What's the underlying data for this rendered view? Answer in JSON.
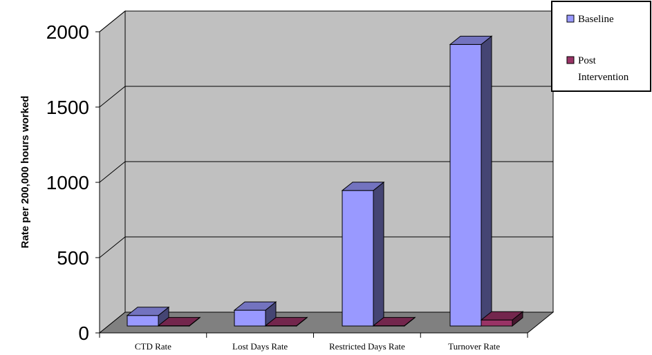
{
  "chart_data": {
    "type": "bar",
    "categories": [
      "CTD Rate",
      "Lost Days Rate",
      "Restricted Days Rate",
      "Turnover Rate"
    ],
    "series": [
      {
        "name": "Baseline",
        "values": [
          70,
          105,
          900,
          1870
        ],
        "color": "#9999ff"
      },
      {
        "name": "Post Intervention",
        "values": [
          2,
          2,
          2,
          40
        ],
        "color": "#993366"
      }
    ],
    "ylabel": "Rate per 200,000 hours worked",
    "ylim": [
      0,
      2000
    ],
    "yticks": [
      "0",
      "500",
      "1000",
      "1500",
      "2000"
    ],
    "grid": true,
    "legend_position": "top-right",
    "legend": [
      {
        "lines": [
          "Baseline"
        ]
      },
      {
        "lines": [
          "Post",
          "Intervention"
        ]
      }
    ],
    "style": "3d-clustered-column",
    "colors": {
      "wall": "#c0c0c0",
      "floor": "#808080",
      "grid": "#000000"
    }
  }
}
